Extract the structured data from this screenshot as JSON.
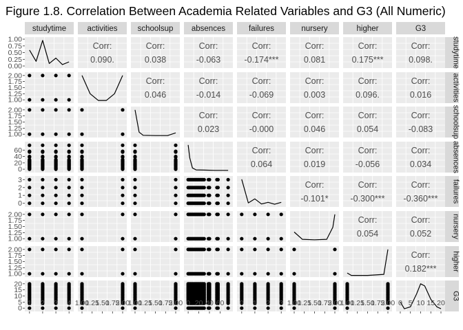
{
  "figure": {
    "title": "Figure 1.8. Correlation Between Academia Related Variables and G3 (All Numeric)"
  },
  "chart_data": {
    "type": "pairs_matrix",
    "title": "Figure 1.8. Correlation Between Academia Related Variables and G3 (All Numeric)",
    "variables": [
      "studytime",
      "activities",
      "schoolsup",
      "absences",
      "failures",
      "nursery",
      "higher",
      "G3"
    ],
    "grid": true,
    "upper_panels": "correlation_text",
    "diagonal_panels": "density",
    "lower_panels": "scatter",
    "corr_label": "Corr:",
    "correlations": [
      {
        "row": "studytime",
        "col": "activities",
        "text": "0.090."
      },
      {
        "row": "studytime",
        "col": "schoolsup",
        "text": "0.038"
      },
      {
        "row": "studytime",
        "col": "absences",
        "text": "-0.063"
      },
      {
        "row": "studytime",
        "col": "failures",
        "text": "-0.174***"
      },
      {
        "row": "studytime",
        "col": "nursery",
        "text": "0.081"
      },
      {
        "row": "studytime",
        "col": "higher",
        "text": "0.175***"
      },
      {
        "row": "studytime",
        "col": "G3",
        "text": "0.098."
      },
      {
        "row": "activities",
        "col": "schoolsup",
        "text": "0.046"
      },
      {
        "row": "activities",
        "col": "absences",
        "text": "-0.014"
      },
      {
        "row": "activities",
        "col": "failures",
        "text": "-0.069"
      },
      {
        "row": "activities",
        "col": "nursery",
        "text": "0.003"
      },
      {
        "row": "activities",
        "col": "higher",
        "text": "0.096."
      },
      {
        "row": "activities",
        "col": "G3",
        "text": "0.016"
      },
      {
        "row": "schoolsup",
        "col": "absences",
        "text": "0.023"
      },
      {
        "row": "schoolsup",
        "col": "failures",
        "text": "-0.000"
      },
      {
        "row": "schoolsup",
        "col": "nursery",
        "text": "0.046"
      },
      {
        "row": "schoolsup",
        "col": "higher",
        "text": "0.054"
      },
      {
        "row": "schoolsup",
        "col": "G3",
        "text": "-0.083"
      },
      {
        "row": "absences",
        "col": "failures",
        "text": "0.064"
      },
      {
        "row": "absences",
        "col": "nursery",
        "text": "0.019"
      },
      {
        "row": "absences",
        "col": "higher",
        "text": "-0.056"
      },
      {
        "row": "absences",
        "col": "G3",
        "text": "0.034"
      },
      {
        "row": "failures",
        "col": "nursery",
        "text": "-0.101*"
      },
      {
        "row": "failures",
        "col": "higher",
        "text": "-0.300***"
      },
      {
        "row": "failures",
        "col": "G3",
        "text": "-0.360***"
      },
      {
        "row": "nursery",
        "col": "higher",
        "text": "0.054"
      },
      {
        "row": "nursery",
        "col": "G3",
        "text": "0.052"
      },
      {
        "row": "higher",
        "col": "G3",
        "text": "0.182***"
      }
    ],
    "axes": {
      "studytime": {
        "range": [
          0.8,
          4.2
        ],
        "ticks": [
          "1",
          "2",
          "3",
          "4"
        ]
      },
      "activities": {
        "range": [
          0.95,
          2.05
        ],
        "ticks": [
          "1.00",
          "1.25",
          "1.50",
          "1.75",
          "2.00"
        ]
      },
      "schoolsup": {
        "range": [
          0.95,
          2.05
        ],
        "ticks": [
          "1.00",
          "1.25",
          "1.50",
          "1.75",
          "2.00"
        ]
      },
      "absences": {
        "range": [
          -4,
          80
        ],
        "ticks": [
          "0",
          "20",
          "40",
          "60"
        ]
      },
      "failures": {
        "range": [
          -0.2,
          3.2
        ],
        "ticks": [
          "0",
          "1",
          "2",
          "3"
        ]
      },
      "nursery": {
        "range": [
          0.95,
          2.05
        ],
        "ticks": [
          "1.00",
          "1.25",
          "1.50",
          "1.75",
          "2.00"
        ]
      },
      "higher": {
        "range": [
          0.95,
          2.05
        ],
        "ticks": [
          "1.00",
          "1.25",
          "1.50",
          "1.75",
          "2.00"
        ]
      },
      "G3": {
        "range": [
          -1,
          21
        ],
        "ticks": [
          "0",
          "5",
          "10",
          "15",
          "20"
        ]
      }
    },
    "diagonal_y_ticks": {
      "studytime": [
        "0.00",
        "0.25",
        "0.50",
        "0.75",
        "1.00"
      ]
    },
    "densities": {
      "studytime": {
        "x": [
          1,
          1.5,
          2,
          2.5,
          3,
          3.5,
          4
        ],
        "y": [
          0.62,
          0.2,
          0.98,
          0.12,
          0.32,
          0.08,
          0.18
        ]
      },
      "activities": {
        "x": [
          1,
          1.2,
          1.4,
          1.6,
          1.8,
          2
        ],
        "y": [
          0.98,
          0.3,
          0.05,
          0.05,
          0.3,
          0.98
        ]
      },
      "schoolsup": {
        "x": [
          1,
          1.1,
          1.2,
          1.5,
          1.8,
          2
        ],
        "y": [
          0.98,
          0.15,
          0.03,
          0.02,
          0.02,
          0.12
        ]
      },
      "absences": {
        "x": [
          0,
          3,
          8,
          15,
          30,
          50,
          75
        ],
        "y": [
          0.98,
          0.5,
          0.12,
          0.05,
          0.04,
          0.03,
          0.03
        ]
      },
      "failures": {
        "x": [
          0,
          0.5,
          1,
          1.5,
          2,
          2.5,
          3
        ],
        "y": [
          0.98,
          0.1,
          0.25,
          0.06,
          0.12,
          0.05,
          0.12
        ]
      },
      "nursery": {
        "x": [
          1,
          1.2,
          1.5,
          1.8,
          1.95,
          2
        ],
        "y": [
          0.32,
          0.05,
          0.03,
          0.05,
          0.5,
          0.98
        ]
      },
      "higher": {
        "x": [
          1,
          1.1,
          1.5,
          1.9,
          2
        ],
        "y": [
          0.1,
          0.01,
          0.01,
          0.05,
          0.98
        ]
      },
      "G3": {
        "x": [
          0,
          2,
          5,
          8,
          10,
          12,
          15,
          18,
          20
        ],
        "y": [
          0.3,
          0.05,
          0.12,
          0.6,
          0.98,
          0.9,
          0.4,
          0.12,
          0.05
        ]
      }
    },
    "observed_values": {
      "studytime": [
        1,
        2,
        3,
        4
      ],
      "activities": [
        1,
        2
      ],
      "schoolsup": [
        1,
        2
      ],
      "absences": [
        0,
        2,
        4,
        6,
        8,
        10,
        12,
        14,
        16,
        18,
        20,
        22,
        24,
        26,
        28,
        30,
        38,
        40,
        54,
        56,
        75
      ],
      "failures": [
        0,
        1,
        2,
        3
      ],
      "nursery": [
        1,
        2
      ],
      "higher": [
        1,
        2
      ],
      "G3": [
        0,
        4,
        5,
        6,
        7,
        8,
        9,
        10,
        11,
        12,
        13,
        14,
        15,
        16,
        17,
        18,
        19,
        20
      ]
    }
  }
}
